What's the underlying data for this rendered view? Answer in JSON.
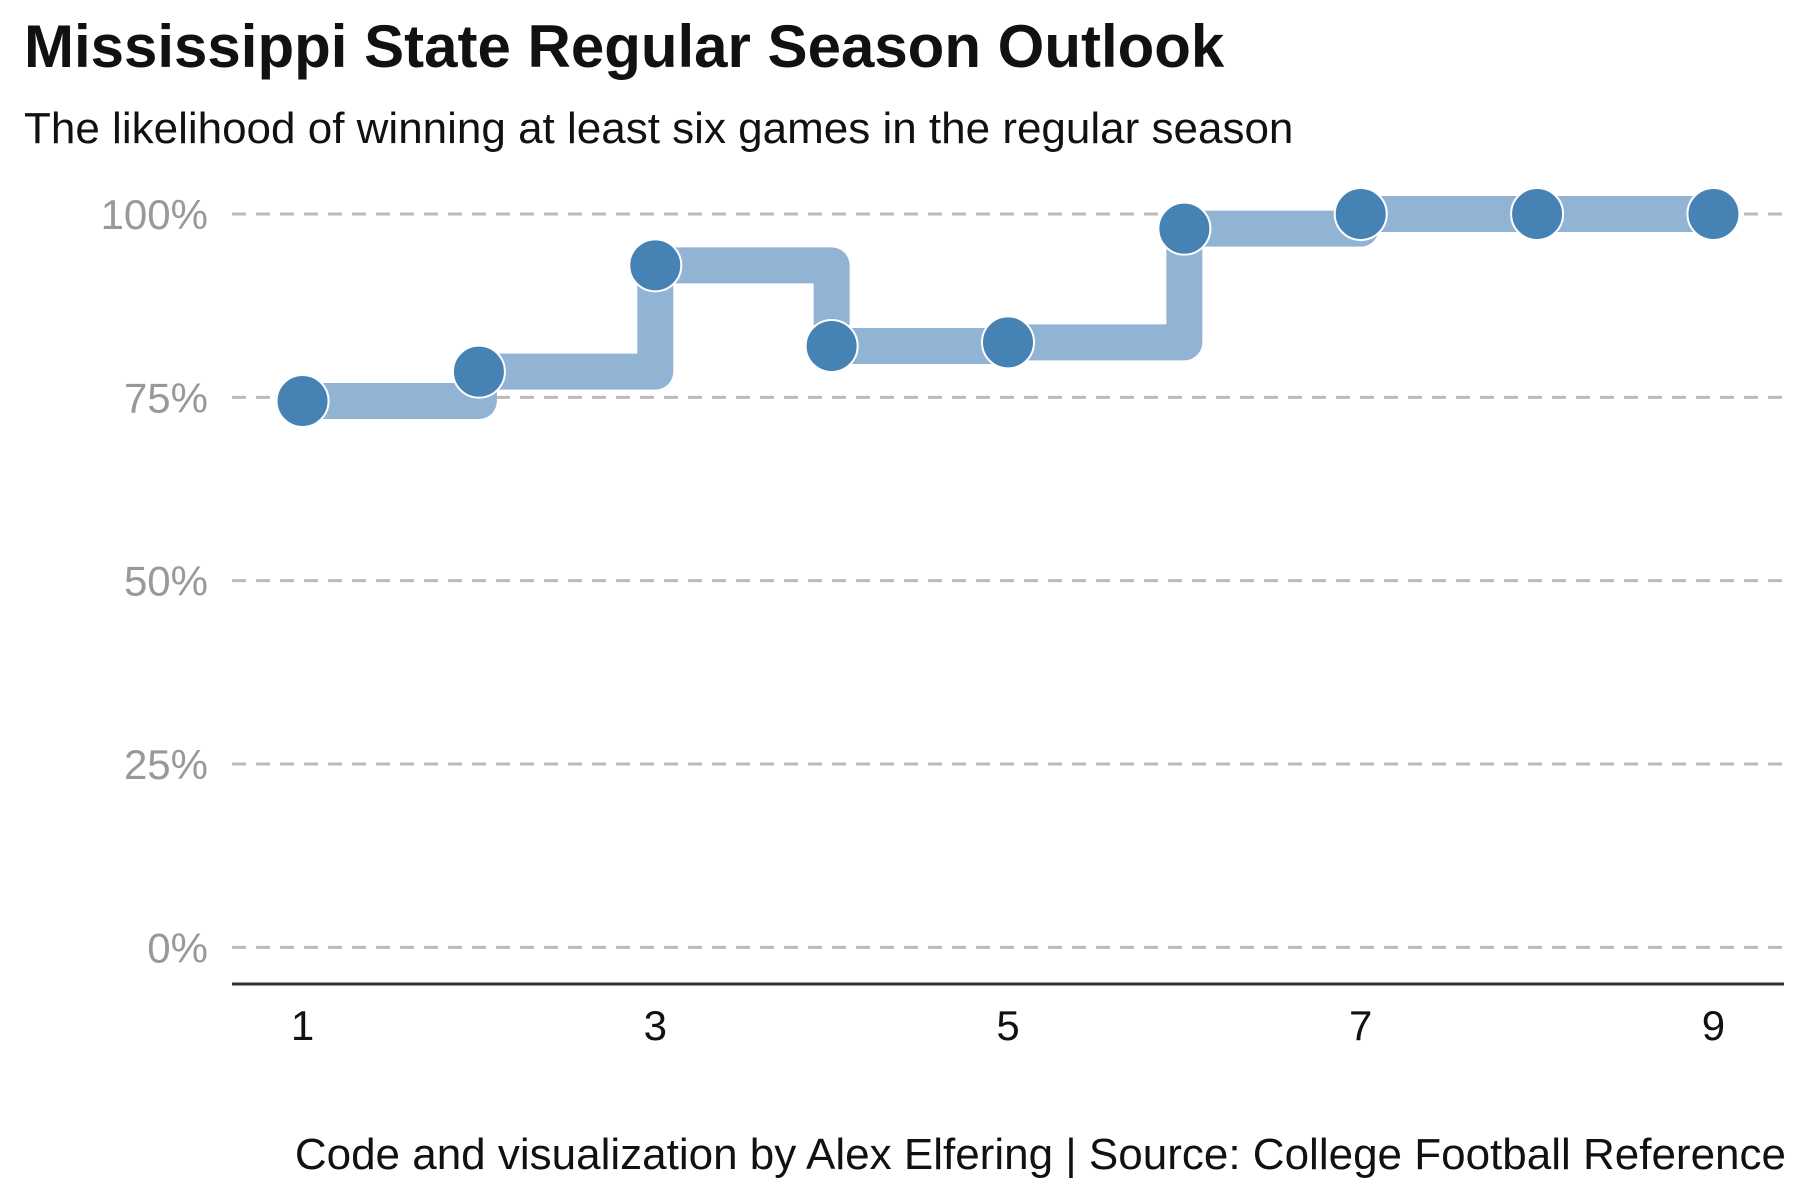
{
  "header": {
    "title": "Mississippi State Regular Season Outlook",
    "subtitle": "The likelihood of winning at least six games in the regular season"
  },
  "footer": {
    "caption": "Code and visualization by Alex Elfering | Source: College Football Reference"
  },
  "colors": {
    "step_line": "#92b4d4",
    "point": "#4682b4",
    "grid": "#bbbbbb",
    "axis": "#333333"
  },
  "chart_data": {
    "type": "line",
    "title": "Mississippi State Regular Season Outlook",
    "subtitle": "The likelihood of winning at least six games in the regular season",
    "xlabel": "",
    "ylabel": "",
    "x": [
      1,
      2,
      3,
      4,
      5,
      6,
      7,
      8,
      9
    ],
    "values": [
      0.745,
      0.785,
      0.93,
      0.82,
      0.825,
      0.98,
      1.0,
      1.0,
      1.0
    ],
    "line_shape": "step",
    "xlim": [
      0.6,
      9.4
    ],
    "ylim": [
      -0.05,
      1.0
    ],
    "x_ticks": [
      1,
      3,
      5,
      7,
      9
    ],
    "x_tick_labels": [
      "1",
      "3",
      "5",
      "7",
      "9"
    ],
    "y_ticks": [
      0,
      0.25,
      0.5,
      0.75,
      1.0
    ],
    "y_tick_labels": [
      "0%",
      "25%",
      "50%",
      "75%",
      "100%"
    ],
    "grid": "horizontal-dashed",
    "legend": "none"
  }
}
